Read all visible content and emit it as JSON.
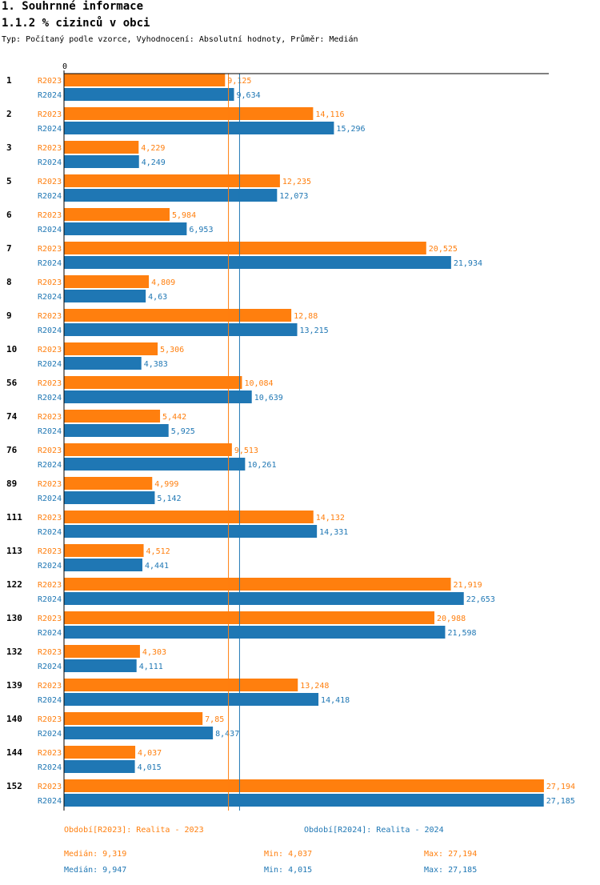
{
  "header": {
    "title": "1. Souhrnné informace",
    "subtitle": "1.1.2 % cizinců v obci",
    "description": "Typ: Počítaný podle vzorce, Vyhodnocení: Absolutní hodnoty, Průměr: Medián"
  },
  "colors": {
    "r2023": "#ff7f0e",
    "r2024": "#1f77b4",
    "axis": "#000000"
  },
  "chart_data": {
    "type": "bar",
    "orientation": "horizontal",
    "axis_zero_label": "0",
    "xlim": [
      0,
      27.5
    ],
    "categories": [
      "1",
      "2",
      "3",
      "5",
      "6",
      "7",
      "8",
      "9",
      "10",
      "56",
      "74",
      "76",
      "89",
      "111",
      "113",
      "122",
      "130",
      "132",
      "139",
      "140",
      "144",
      "152"
    ],
    "series": [
      {
        "name": "R2023",
        "values": [
          9.125,
          14.116,
          4.229,
          12.235,
          5.984,
          20.525,
          4.809,
          12.88,
          5.306,
          10.084,
          5.442,
          9.513,
          4.999,
          14.132,
          4.512,
          21.919,
          20.988,
          4.303,
          13.248,
          7.85,
          4.037,
          27.194
        ],
        "labels": [
          "9,125",
          "14,116",
          "4,229",
          "12,235",
          "5,984",
          "20,525",
          "4,809",
          "12,88",
          "5,306",
          "10,084",
          "5,442",
          "9,513",
          "4,999",
          "14,132",
          "4,512",
          "21,919",
          "20,988",
          "4,303",
          "13,248",
          "7,85",
          "4,037",
          "27,194"
        ]
      },
      {
        "name": "R2024",
        "values": [
          9.634,
          15.296,
          4.249,
          12.073,
          6.953,
          21.934,
          4.63,
          13.215,
          4.383,
          10.639,
          5.925,
          10.261,
          5.142,
          14.331,
          4.441,
          22.653,
          21.598,
          4.111,
          14.418,
          8.437,
          4.015,
          27.185
        ],
        "labels": [
          "9,634",
          "15,296",
          "4,249",
          "12,073",
          "6,953",
          "21,934",
          "4,63",
          "13,215",
          "4,383",
          "10,639",
          "5,925",
          "10,261",
          "5,142",
          "14,331",
          "4,441",
          "22,653",
          "21,598",
          "4,111",
          "14,418",
          "8,437",
          "4,015",
          "27,185"
        ]
      }
    ],
    "median_lines": [
      9.319,
      9.947
    ]
  },
  "legend": {
    "period_2023": "Období[R2023]: Realita - 2023",
    "period_2024": "Období[R2024]: Realita - 2024",
    "median_2023": "Medián: 9,319",
    "min_2023": "Min: 4,037",
    "max_2023": "Max: 27,194",
    "median_2024": "Medián: 9,947",
    "min_2024": "Min: 4,015",
    "max_2024": "Max: 27,185"
  }
}
